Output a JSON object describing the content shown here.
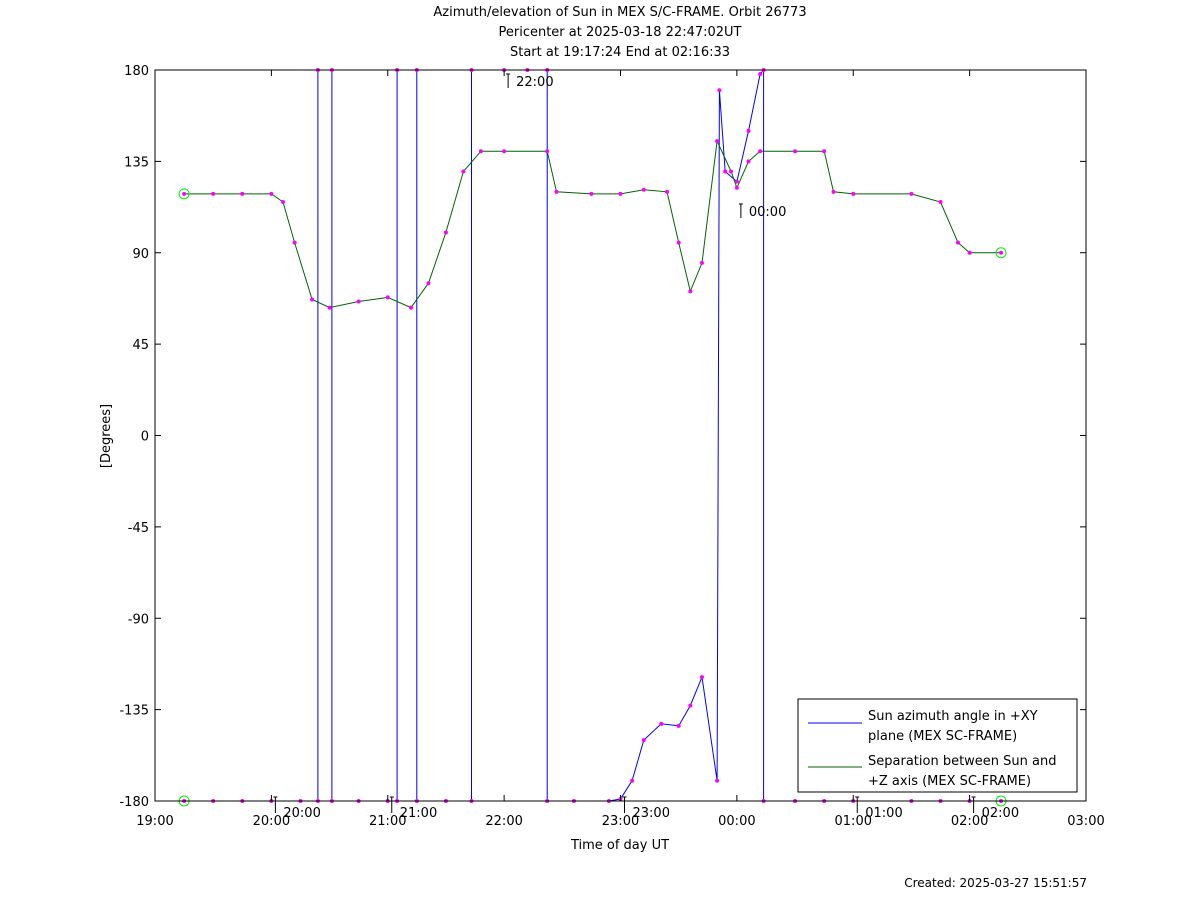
{
  "title_lines": [
    "Azimuth/elevation of Sun in MEX S/C-FRAME.  Orbit 26773",
    "Pericenter at 2025-03-18 22:47:02UT",
    "Start at 19:17:24 End at 02:16:33"
  ],
  "created": "Created: 2025-03-27 15:51:57",
  "colors": {
    "azimuth": "#0000ff",
    "separation": "#006400",
    "marker": "#ff00ff",
    "endpoint": "#00ee00"
  },
  "chart_data": {
    "type": "line",
    "xlabel": "Time of day UT",
    "ylabel": "[Degrees]",
    "xlim": [
      19.0,
      27.0
    ],
    "ylim": [
      -180,
      180
    ],
    "x_ticks": [
      19,
      20,
      21,
      22,
      23,
      24,
      25,
      26,
      27
    ],
    "x_tick_labels": [
      "19:00",
      "20:00",
      "21:00",
      "22:00",
      "23:00",
      "00:00",
      "01:00",
      "02:00",
      "03:00"
    ],
    "y_ticks": [
      180,
      135,
      90,
      45,
      0,
      -45,
      -90,
      -135,
      -180
    ],
    "y_tick_labels": [
      "180",
      "135",
      "90",
      "45",
      "0",
      "-45",
      "-90",
      "-135",
      "-180"
    ],
    "grid": false,
    "legend_position": "bottom-right",
    "annotations": [
      {
        "text": "20:00",
        "x": 20.0,
        "y": -180
      },
      {
        "text": "21:00",
        "x": 21.0,
        "y": -180
      },
      {
        "text": "22:00",
        "x": 22.0,
        "y": 180
      },
      {
        "text": "23:00",
        "x": 23.0,
        "y": -180
      },
      {
        "text": "00:00",
        "x": 24.0,
        "y": 116
      },
      {
        "text": "01:00",
        "x": 25.0,
        "y": -180
      },
      {
        "text": "02:00",
        "x": 26.0,
        "y": -180
      }
    ],
    "series": [
      {
        "name": "Sun azimuth angle in +XY plane (MEX SC-FRAME)",
        "key": "azimuth",
        "x": [
          19.25,
          19.5,
          19.75,
          20.0,
          20.25,
          20.4,
          20.4,
          20.52,
          20.52,
          20.75,
          21.0,
          21.08,
          21.08,
          21.25,
          21.25,
          21.5,
          21.72,
          21.72,
          22.0,
          22.2,
          22.37,
          22.37,
          22.6,
          22.9,
          23.0,
          23.1,
          23.2,
          23.35,
          23.5,
          23.6,
          23.7,
          23.83,
          23.85,
          23.9,
          24.0,
          24.1,
          24.2,
          24.23,
          24.23,
          24.5,
          24.75,
          25.0,
          25.5,
          25.75,
          26.0,
          26.27
        ],
        "y": [
          -180,
          -180,
          -180,
          -180,
          -180,
          -180,
          180,
          180,
          -180,
          -180,
          -180,
          -180,
          180,
          180,
          -180,
          -180,
          -180,
          180,
          180,
          180,
          180,
          -180,
          -180,
          -180,
          -179,
          -170,
          -150,
          -142,
          -143,
          -133,
          -119,
          -170,
          170,
          130,
          125,
          150,
          178,
          180,
          -180,
          -180,
          -180,
          -180,
          -180,
          -180,
          -180,
          -180
        ]
      },
      {
        "name": "Separation between Sun and +Z axis (MEX SC-FRAME)",
        "key": "separation",
        "x": [
          19.25,
          19.5,
          19.75,
          20.0,
          20.1,
          20.2,
          20.35,
          20.5,
          20.75,
          21.0,
          21.2,
          21.35,
          21.5,
          21.65,
          21.8,
          22.0,
          22.37,
          22.45,
          22.75,
          23.0,
          23.2,
          23.4,
          23.5,
          23.6,
          23.7,
          23.83,
          23.95,
          24.0,
          24.1,
          24.2,
          24.5,
          24.75,
          24.83,
          25.0,
          25.5,
          25.75,
          25.9,
          26.0,
          26.27
        ],
        "y": [
          119,
          119,
          119,
          119,
          115,
          95,
          67,
          63,
          66,
          68,
          63,
          75,
          100,
          130,
          140,
          140,
          140,
          120,
          119,
          119,
          121,
          120,
          95,
          71,
          85,
          145,
          130,
          122,
          135,
          140,
          140,
          140,
          120,
          119,
          119,
          115,
          95,
          90,
          90
        ]
      }
    ]
  }
}
